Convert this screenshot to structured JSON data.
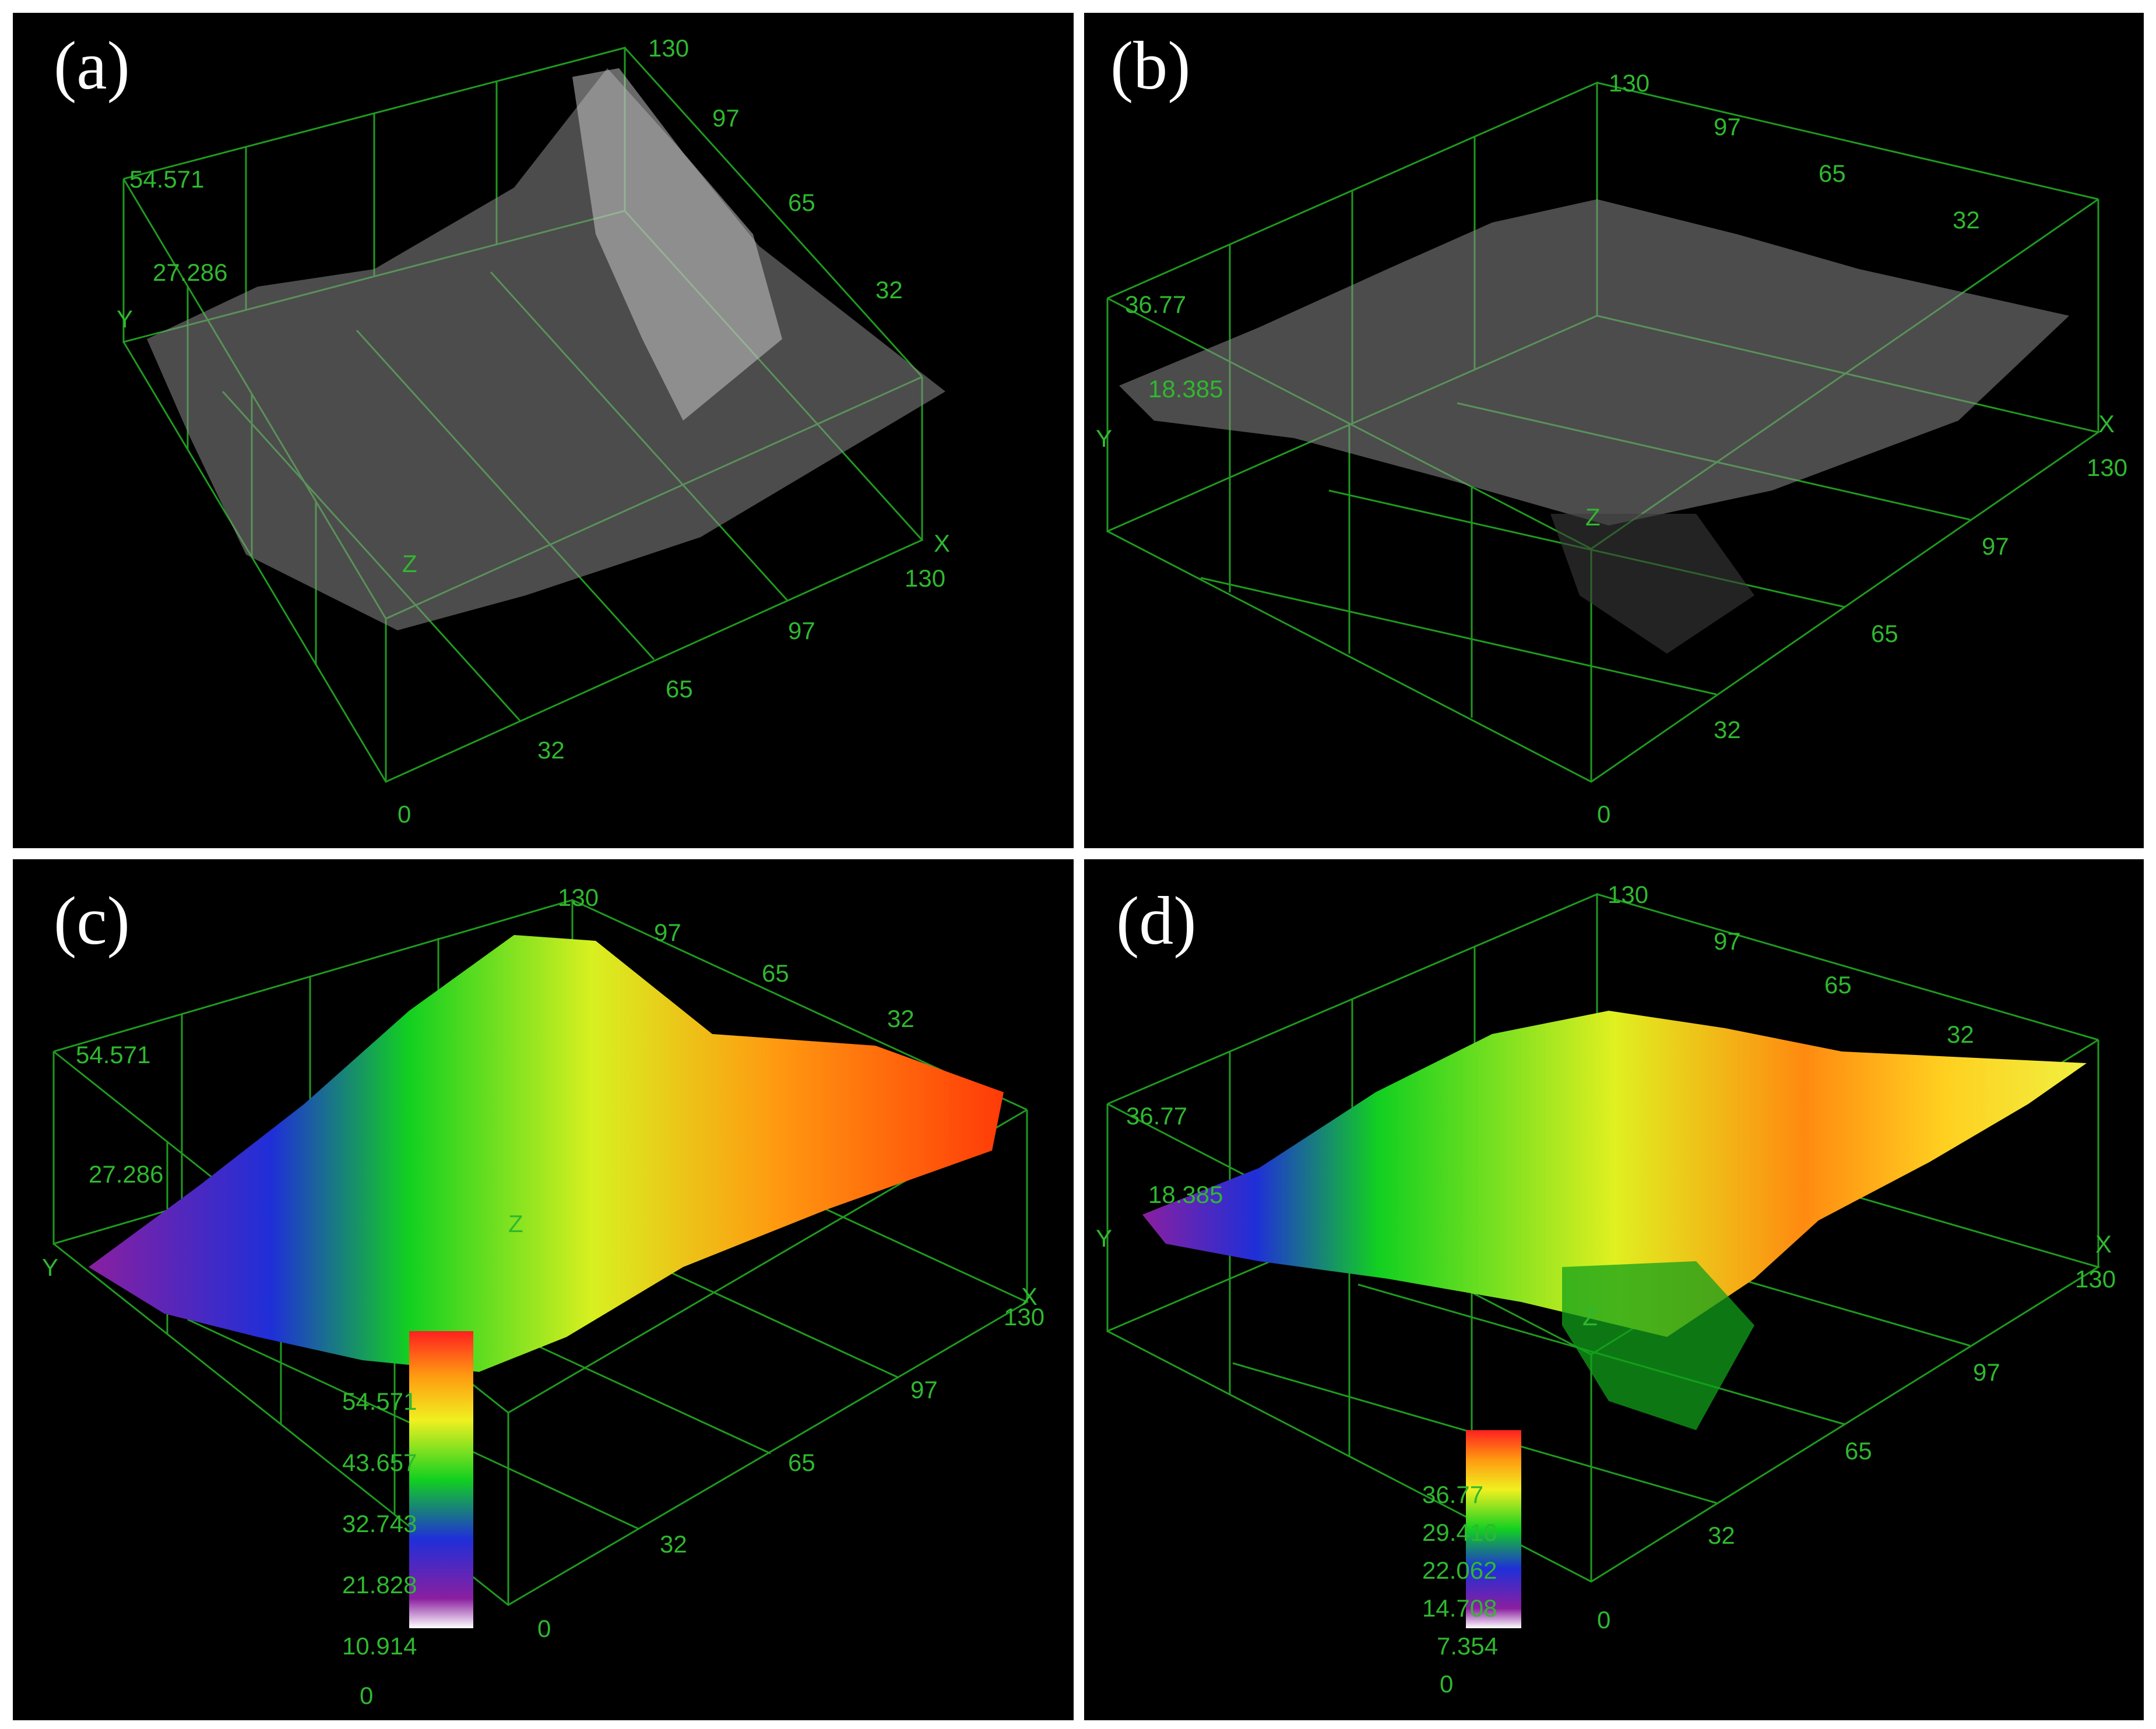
{
  "figure": {
    "panels": [
      {
        "id": "a",
        "label": "(a)",
        "render": "grayscale",
        "z_ticks": [
          "54.571",
          "27.286"
        ],
        "x_ticks": [
          "0",
          "32",
          "65",
          "97",
          "130"
        ],
        "y_ticks": [
          "130",
          "97",
          "65",
          "32"
        ],
        "axis_x": "X",
        "axis_y": "Y",
        "axis_z": "Z",
        "colorbar": null
      },
      {
        "id": "b",
        "label": "(b)",
        "render": "grayscale",
        "z_ticks": [
          "36.77",
          "18.385"
        ],
        "x_ticks": [
          "0",
          "32",
          "65",
          "97",
          "130"
        ],
        "y_ticks": [
          "130",
          "97",
          "65",
          "32"
        ],
        "axis_x": "X",
        "axis_y": "Y",
        "axis_z": "Z",
        "colorbar": null
      },
      {
        "id": "c",
        "label": "(c)",
        "render": "color",
        "z_ticks": [
          "54.571",
          "27.286"
        ],
        "x_ticks": [
          "0",
          "32",
          "65",
          "97",
          "130"
        ],
        "y_ticks": [
          "130",
          "97",
          "65",
          "32"
        ],
        "axis_x": "X",
        "axis_y": "Y",
        "axis_z": "Z",
        "colorbar": [
          "54.571",
          "43.657",
          "32.743",
          "21.828",
          "10.914",
          "0"
        ]
      },
      {
        "id": "d",
        "label": "(d)",
        "render": "color",
        "z_ticks": [
          "36.77",
          "18.385"
        ],
        "x_ticks": [
          "0",
          "32",
          "65",
          "97",
          "130"
        ],
        "y_ticks": [
          "130",
          "97",
          "65",
          "32"
        ],
        "axis_x": "X",
        "axis_y": "Y",
        "axis_z": "Z",
        "colorbar": [
          "36.77",
          "29.416",
          "22.062",
          "14.708",
          "7.354",
          "0"
        ]
      }
    ],
    "colors": {
      "background": "#000000",
      "grid": "#1f9a1f",
      "tick_text": "#2fb82f",
      "label": "#ffffff"
    }
  }
}
